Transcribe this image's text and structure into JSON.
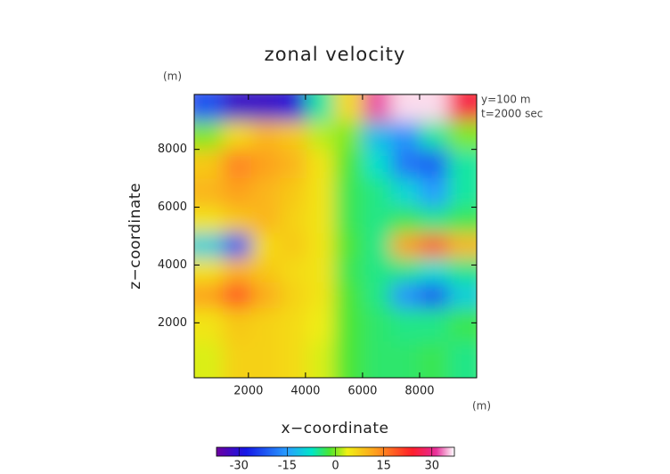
{
  "chart_data": {
    "type": "contour",
    "title": "zonal velocity",
    "x_label": "x−coordinate",
    "y_label": "z−coordinate",
    "x_unit": "(m)",
    "y_unit": "(m)",
    "annotations": [
      "y=100 m",
      "t=2000 sec"
    ],
    "xlim": [
      100,
      10000
    ],
    "ylim": [
      100,
      9900
    ],
    "xticks": [
      2000,
      4000,
      6000,
      8000
    ],
    "yticks": [
      2000,
      4000,
      6000,
      8000
    ],
    "x": [
      600,
      1600,
      2600,
      3600,
      4500,
      5500,
      6500,
      7500,
      8500,
      9500
    ],
    "z": [
      9450,
      8500,
      7500,
      6500,
      5500,
      4700,
      3800,
      3000,
      2000,
      700
    ],
    "values": [
      [
        -22,
        -32,
        -32,
        -30,
        -6,
        6,
        32,
        36,
        36,
        26
      ],
      [
        0,
        6,
        10,
        8,
        2,
        0,
        -12,
        -16,
        -6,
        0
      ],
      [
        8,
        15,
        12,
        10,
        5,
        -2,
        -8,
        -19,
        -21,
        -6
      ],
      [
        10,
        12,
        10,
        8,
        5,
        -3,
        -5,
        -9,
        -15,
        -6
      ],
      [
        5,
        8,
        10,
        7,
        5,
        -3,
        -5,
        -3,
        -5,
        -3
      ],
      [
        -10,
        -22,
        6,
        8,
        5,
        -2,
        -5,
        12,
        18,
        10
      ],
      [
        5,
        10,
        8,
        6,
        5,
        -3,
        -5,
        -5,
        -8,
        -5
      ],
      [
        12,
        19,
        11,
        7,
        5,
        -2,
        -5,
        -16,
        -22,
        -10
      ],
      [
        5,
        8,
        7,
        6,
        4,
        -2,
        -4,
        -5,
        -5,
        -3
      ],
      [
        3,
        7,
        7,
        6,
        3,
        -2,
        -4,
        -4,
        -3,
        -5
      ]
    ],
    "clim": [
      -37,
      37
    ],
    "cticks": [
      -30,
      -15,
      0,
      15,
      30
    ]
  }
}
